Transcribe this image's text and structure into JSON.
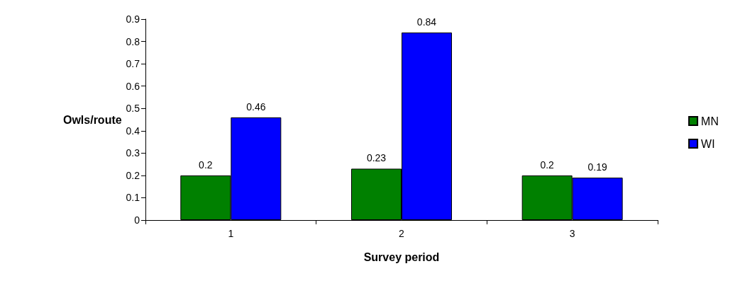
{
  "chart_data": {
    "type": "bar",
    "xlabel": "Survey period",
    "ylabel": "Owls/route",
    "categories": [
      "1",
      "2",
      "3"
    ],
    "series": [
      {
        "name": "MN",
        "color": "#008000",
        "values": [
          0.2,
          0.23,
          0.2
        ]
      },
      {
        "name": "WI",
        "color": "#0000ff",
        "values": [
          0.46,
          0.84,
          0.19
        ]
      }
    ],
    "ylim": [
      0,
      0.9
    ],
    "yticks": [
      0,
      0.1,
      0.2,
      0.3,
      0.4,
      0.5,
      0.6,
      0.7,
      0.8,
      0.9
    ],
    "data_labels": true,
    "grid": false,
    "legend": "right"
  }
}
